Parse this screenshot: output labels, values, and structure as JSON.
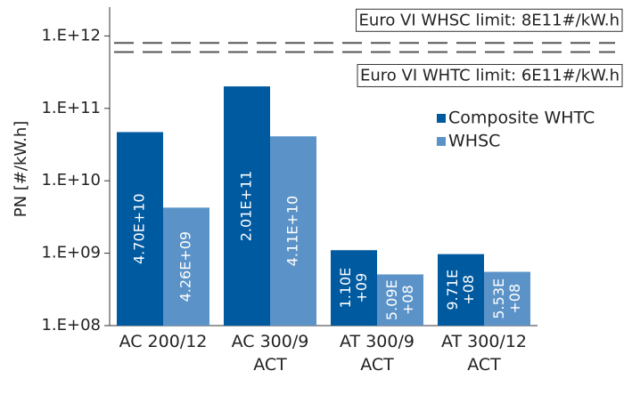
{
  "chart_data": {
    "type": "bar",
    "log_scale": true,
    "ylabel": "PN [#/kW.h]",
    "categories": [
      "AC 200/12",
      "AC 300/9 ACT",
      "AT 300/9 ACT",
      "AT 300/12 ACT"
    ],
    "series": [
      {
        "name": "Composite WHTC",
        "color": "#005aa0",
        "values": [
          47000000000,
          201000000000,
          1100000000,
          971000000
        ],
        "value_labels": [
          "4.70E+10",
          "2.01E+11",
          "1.10E+09",
          "9.71E+08"
        ]
      },
      {
        "name": "WHSC",
        "color": "#5b93c8",
        "values": [
          4260000000,
          41100000000,
          509000000,
          553000000
        ],
        "value_labels": [
          "4.26E+09",
          "4.11E+10",
          "5.09E+08",
          "5.53E+08"
        ]
      }
    ],
    "limits": [
      {
        "label": "Euro VI WHSC limit: 8E11#/kW.h",
        "value": 800000000000
      },
      {
        "label": "Euro VI WHTC limit: 6E11#/kW.h",
        "value": 600000000000
      }
    ],
    "ylim": [
      100000000,
      2500000000000
    ],
    "yticks": [
      {
        "value": 100000000,
        "label": "1.E+08"
      },
      {
        "value": 1000000000,
        "label": "1.E+09"
      },
      {
        "value": 10000000000,
        "label": "1.E+10"
      },
      {
        "value": 100000000000,
        "label": "1.E+11"
      },
      {
        "value": 1000000000000,
        "label": "1.E+12"
      }
    ],
    "legend": "upper right"
  }
}
